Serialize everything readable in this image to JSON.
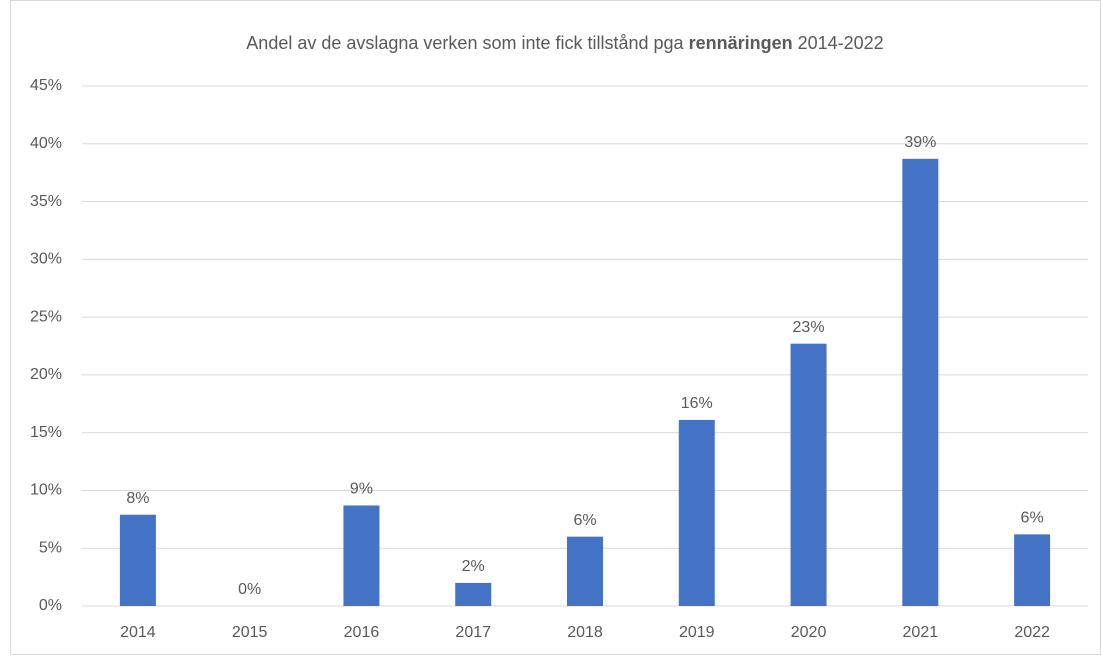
{
  "chart_data": {
    "type": "bar",
    "title": [
      "Andel av de avslagna verken som inte fick tillstånd pga",
      "rennäringen",
      "2014-2022"
    ],
    "categories": [
      "2014",
      "2015",
      "2016",
      "2017",
      "2018",
      "2019",
      "2020",
      "2021",
      "2022"
    ],
    "values": [
      7.9,
      0,
      8.7,
      2.0,
      6.0,
      16.1,
      22.7,
      38.7,
      6.2
    ],
    "value_labels": [
      "8%",
      "0%",
      "9%",
      "2%",
      "6%",
      "16%",
      "23%",
      "39%",
      "6%"
    ],
    "color": "#4472c4",
    "ylim": [
      0,
      45
    ],
    "yticks": [
      {
        "value": 0,
        "label": "0%"
      },
      {
        "value": 5,
        "label": "5%"
      },
      {
        "value": 10,
        "label": "10%"
      },
      {
        "value": 15,
        "label": "15%"
      },
      {
        "value": 20,
        "label": "20%"
      },
      {
        "value": 25,
        "label": "25%"
      },
      {
        "value": 30,
        "label": "30%"
      },
      {
        "value": 35,
        "label": "35%"
      },
      {
        "value": 40,
        "label": "40%"
      },
      {
        "value": 45,
        "label": "45%"
      }
    ],
    "grid": true
  }
}
